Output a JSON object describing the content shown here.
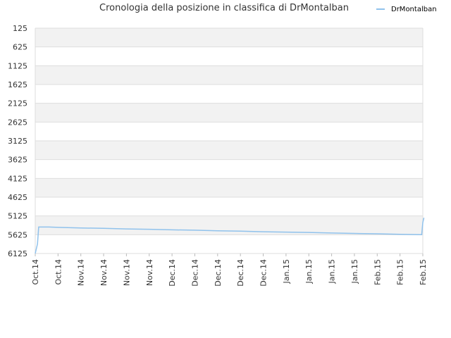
{
  "chart_data": {
    "type": "line",
    "title": "Cronologia della posizione in classifica di DrMontalban",
    "xlabel": "",
    "ylabel": "",
    "y_inverted": true,
    "ylim": [
      6125,
      125
    ],
    "yticks": [
      125,
      625,
      1125,
      1625,
      2125,
      2625,
      3125,
      3625,
      4125,
      4625,
      5125,
      5625,
      6125
    ],
    "x_tick_labels": [
      "Oct.14",
      "Oct.14",
      "Nov.14",
      "Nov.14",
      "Nov.14",
      "Nov.14",
      "Dec.14",
      "Dec.14",
      "Dec.14",
      "Dec.14",
      "Dec.14",
      "Jan.15",
      "Jan.15",
      "Jan.15",
      "Jan.15",
      "Feb.15",
      "Feb.15",
      "Feb.15"
    ],
    "grid": true,
    "legend_position": "top-right",
    "series": [
      {
        "name": "DrMontalban",
        "color": "#90c2ec",
        "points": [
          [
            0.0,
            6125
          ],
          [
            0.1,
            5870
          ],
          [
            0.15,
            5420
          ],
          [
            0.6,
            5420
          ],
          [
            1.0,
            5430
          ],
          [
            2.0,
            5445
          ],
          [
            3.0,
            5455
          ],
          [
            4.0,
            5470
          ],
          [
            5.0,
            5480
          ],
          [
            6.0,
            5495
          ],
          [
            7.0,
            5505
          ],
          [
            8.0,
            5520
          ],
          [
            9.0,
            5530
          ],
          [
            10.0,
            5545
          ],
          [
            11.0,
            5555
          ],
          [
            12.0,
            5565
          ],
          [
            13.0,
            5580
          ],
          [
            14.0,
            5590
          ],
          [
            15.0,
            5600
          ],
          [
            16.0,
            5615
          ],
          [
            16.9,
            5625
          ],
          [
            16.9,
            5625
          ],
          [
            16.95,
            5625
          ],
          [
            17.0,
            5300
          ],
          [
            17.05,
            5175
          ]
        ]
      }
    ]
  }
}
